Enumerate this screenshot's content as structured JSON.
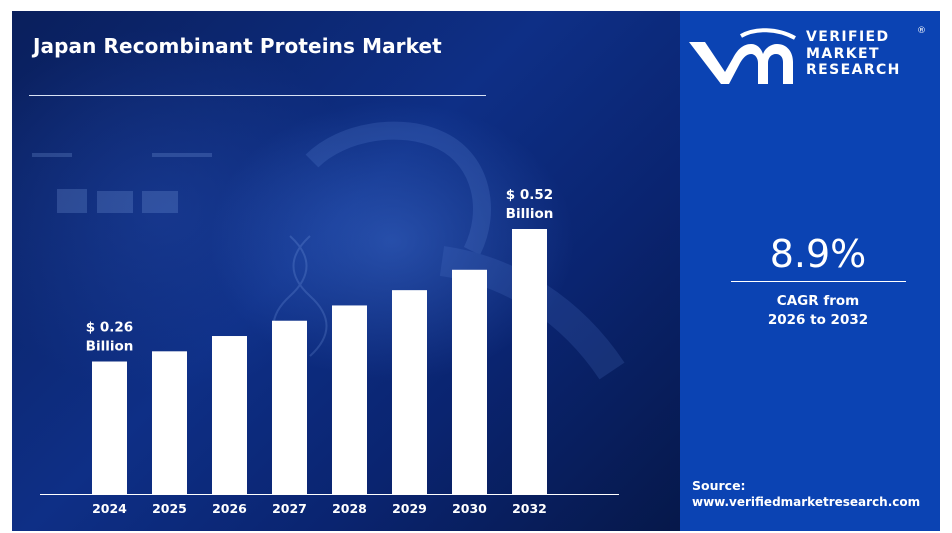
{
  "header": {
    "title": "Japan Recombinant Proteins Market"
  },
  "brand": {
    "line1": "VERIFIED",
    "line2": "MARKET",
    "line3": "RESEARCH",
    "registered": "®",
    "logo_icon": "vmr-logo-icon"
  },
  "cagr": {
    "value": "8.9%",
    "label_line1": "CAGR from",
    "label_line2": "2026 to 2032"
  },
  "source": {
    "label": "Source:",
    "url": "www.verifiedmarketresearch.com"
  },
  "colors": {
    "bar": "#ffffff",
    "accent": "#0b43b3",
    "background": "#0e2f86"
  },
  "chart_data": {
    "type": "bar",
    "categories": [
      "2024",
      "2025",
      "2026",
      "2027",
      "2028",
      "2029",
      "2030",
      "2032"
    ],
    "values": [
      0.26,
      0.28,
      0.31,
      0.34,
      0.37,
      0.4,
      0.44,
      0.52
    ],
    "unit": "USD Billion",
    "annotations": [
      {
        "index": 0,
        "line1": "$ 0.26",
        "line2": "Billion"
      },
      {
        "index": 7,
        "line1": "$ 0.52",
        "line2": "Billion"
      }
    ],
    "grid": false,
    "legend": "none"
  }
}
